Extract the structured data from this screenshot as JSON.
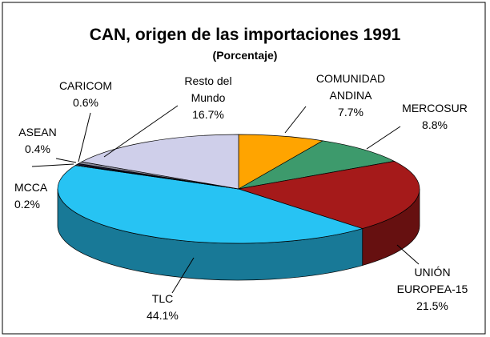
{
  "chart_data": {
    "type": "pie",
    "title": "CAN, origen de las importaciones 1991",
    "subtitle": "(Porcentaje)",
    "categories": [
      "COMUNIDAD ANDINA",
      "MERCOSUR",
      "UNIÓN EUROPEA-15",
      "TLC",
      "MCCA",
      "ASEAN",
      "CARICOM",
      "Resto del Mundo"
    ],
    "values": [
      7.7,
      8.8,
      21.5,
      44.1,
      0.2,
      0.4,
      0.6,
      16.7
    ],
    "value_labels": [
      "7.7%",
      "8.8%",
      "21.5%",
      "44.1%",
      "0.2%",
      "0.4%",
      "0.6%",
      "16.7%"
    ],
    "colors": [
      "#ffa400",
      "#3d9a6c",
      "#a51a1a",
      "#27c3f3",
      "#f0f0f0",
      "#1a1a40",
      "#8a8a9a",
      "#cfcfea"
    ]
  }
}
